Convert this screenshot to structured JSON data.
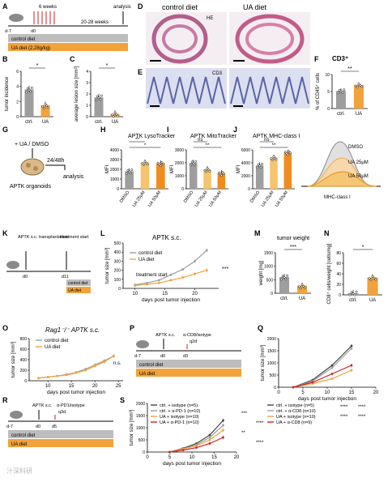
{
  "colors": {
    "ctrl": "#9e9e9e",
    "ua": "#f2a23a",
    "dark": "#444444",
    "red": "#cc2222",
    "light": "#f6c46e",
    "orange": "#f08c1e"
  },
  "panelA": {
    "label": "A",
    "time1": "6 weeks",
    "time2": "20-28 weeks",
    "analysis": "analysis",
    "d7": "d-7",
    "d0": "d0",
    "bar1": "control diet",
    "bar2": "UA diet (2,28g/kg)"
  },
  "panelB": {
    "label": "B",
    "ylabel": "tumor incidence",
    "sig": "*",
    "ticks": [
      "0",
      "2",
      "4",
      "6"
    ],
    "xticks": [
      "ctrl.",
      "UA"
    ]
  },
  "panelC": {
    "label": "C",
    "ylabel": "average lesion size [mm²]",
    "sig": "*",
    "ticks": [
      "0",
      "1",
      "2",
      "3",
      "4"
    ],
    "xticks": [
      "ctrl.",
      "UA"
    ]
  },
  "panelD": {
    "label": "D",
    "t1": "control diet",
    "t2": "UA diet",
    "he": "HE"
  },
  "panelE": {
    "label": "E",
    "cd3": "CD3"
  },
  "panelF": {
    "label": "F",
    "title": "CD3⁺",
    "ylabel": "% of CD45⁺ cells",
    "sig": "**",
    "ticks": [
      "0",
      "5",
      "10"
    ],
    "xticks": [
      "ctrl.",
      "UA"
    ]
  },
  "panelG": {
    "label": "G",
    "treat": "+ UA / DMSO",
    "time": "24/48h",
    "analysis": "analysis",
    "caption": "APTK organoids"
  },
  "panelH": {
    "label": "H",
    "title": "APTK LysoTracker",
    "ylabel": "MFI",
    "sig1": "**",
    "sig2": "*",
    "ticks": [
      "0",
      "1000",
      "2000",
      "3000",
      "4000"
    ],
    "xticks": [
      "DMSO",
      "UA 25μM",
      "UA 50μM"
    ]
  },
  "panelI": {
    "label": "I",
    "title": "APTK MitoTracker",
    "ylabel": "MFI",
    "sig1": "ns",
    "sig2": "**",
    "ticks": [
      "0",
      "1000",
      "2000",
      "3000"
    ],
    "xticks": [
      "DMSO",
      "UA 25μM",
      "UA 50μM"
    ]
  },
  "panelJ": {
    "label": "J",
    "title": "APTK MHC-class I",
    "ylabel": "MFI",
    "sig1": "ns",
    "sig2": "**",
    "ticks": [
      "0",
      "2000",
      "4000",
      "6000"
    ],
    "xticks": [
      "DMSO",
      "UA 25μM",
      "UA 50μM"
    ],
    "hist": [
      "DMSO",
      "UA 25μM",
      "UA 50μM"
    ],
    "hist_x": "MHC-class I"
  },
  "panelK": {
    "label": "K",
    "s1": "APTK s.c. transplantation",
    "s2": "treatment start",
    "d0": "d0",
    "d11": "d11",
    "bar1": "control diet",
    "bar2": "UA diet"
  },
  "panelL": {
    "label": "L",
    "title": "APTK s.c.",
    "ylabel": "tumor size [mm³]",
    "xlabel": "days post tumor injection",
    "sig": "***",
    "annot": "treatment start",
    "legend": [
      "control diet",
      "UA diet"
    ],
    "yticks": [
      "0",
      "100",
      "200",
      "300",
      "400",
      "500"
    ],
    "xticks": [
      "10",
      "15",
      "20"
    ]
  },
  "panelM": {
    "label": "M",
    "title": "tumor weight",
    "ylabel": "weight [mg]",
    "sig": "***",
    "ticks": [
      "0",
      "500",
      "1000",
      "1500"
    ],
    "xticks": [
      "ctrl.",
      "UA"
    ]
  },
  "panelN": {
    "label": "N",
    "ylabel": "CD8⁺ cells/weight [cells/mg]",
    "sig": "*",
    "ticks": [
      "0",
      "20",
      "40",
      "60",
      "80"
    ],
    "xticks": [
      "ctrl.",
      "UA"
    ]
  },
  "panelO": {
    "label": "O",
    "title": "Rag1⁻/⁻ APTK s.c.",
    "ylabel": "tumor size [mm³]",
    "xlabel": "days post tumor injection",
    "sig": "n.s.",
    "legend": [
      "control diet",
      "UA diet"
    ],
    "yticks": [
      "0",
      "200",
      "400",
      "600",
      "800"
    ],
    "xticks": [
      "10",
      "15",
      "20",
      "25"
    ]
  },
  "panelP": {
    "label": "P",
    "s1": "APTK s.c.",
    "s2": "α-CD8/isotype",
    "q2d": "q2d",
    "d7": "d-7",
    "d0": "d0",
    "d3": "d3",
    "bar1": "control diet",
    "bar2": "UA diet"
  },
  "panelQ": {
    "label": "Q",
    "ylabel": "tumor size [mm³]",
    "xlabel": "days post tumor injection",
    "legend": [
      "ctrl. + isotype (n=5)",
      "ctrl. + α-CD8 (n=10)",
      "UA + isotype (n=10)",
      "UA + α-CD8 (n=9)"
    ],
    "sigs": [
      "****",
      "****",
      "****",
      "****"
    ],
    "yticks": [
      "0",
      "500",
      "1000",
      "1500",
      "2000"
    ],
    "xticks": [
      "0",
      "5",
      "10",
      "15",
      "20"
    ]
  },
  "panelR": {
    "label": "R",
    "s1": "APTK s.c.",
    "s2": "α-PD1/isotype",
    "q3d": "q3d",
    "d7": "d-7",
    "d0": "d0",
    "d5": "d5",
    "bar1": "control diet",
    "bar2": "UA diet"
  },
  "panelS": {
    "label": "S",
    "ylabel": "tumor size [mm³]",
    "xlabel": "days post tumor injection",
    "legend": [
      "ctrl. + isotype (n=5)",
      "ctrl. + α-PD-1 (n=10)",
      "UA + isotype (n=10)",
      "UA + α-PD-1 (n=10)"
    ],
    "sigs": [
      "***",
      "****",
      "**",
      "****"
    ],
    "yticks": [
      "0",
      "500",
      "1000",
      "1500",
      "2000"
    ],
    "xticks": [
      "0",
      "5",
      "10",
      "15",
      "20"
    ]
  },
  "watermark": "汁深科研",
  "chart_data": [
    {
      "panel": "B",
      "type": "bar",
      "categories": [
        "ctrl.",
        "UA"
      ],
      "values": [
        3.6,
        1.5
      ],
      "ylim": [
        0,
        6
      ],
      "ylabel": "tumor incidence"
    },
    {
      "panel": "C",
      "type": "bar",
      "categories": [
        "ctrl.",
        "UA"
      ],
      "values": [
        1.7,
        0.25
      ],
      "ylim": [
        0,
        4
      ],
      "ylabel": "average lesion size [mm²]"
    },
    {
      "panel": "F",
      "type": "bar",
      "categories": [
        "ctrl.",
        "UA"
      ],
      "values": [
        6.2,
        8.3
      ],
      "ylim": [
        0,
        12
      ],
      "title": "CD3⁺",
      "ylabel": "% of CD45⁺ cells"
    },
    {
      "panel": "H",
      "type": "bar",
      "categories": [
        "DMSO",
        "UA 25μM",
        "UA 50μM"
      ],
      "values": [
        1800,
        2700,
        2600
      ],
      "ylim": [
        0,
        4000
      ],
      "title": "APTK LysoTracker",
      "ylabel": "MFI"
    },
    {
      "panel": "I",
      "type": "bar",
      "categories": [
        "DMSO",
        "UA 25μM",
        "UA 50μM"
      ],
      "values": [
        2000,
        1500,
        1200
      ],
      "ylim": [
        0,
        3000
      ],
      "title": "APTK MitoTracker",
      "ylabel": "MFI"
    },
    {
      "panel": "J",
      "type": "bar",
      "categories": [
        "DMSO",
        "UA 25μM",
        "UA 50μM"
      ],
      "values": [
        3600,
        4800,
        5600
      ],
      "ylim": [
        0,
        6000
      ],
      "title": "APTK MHC-class I",
      "ylabel": "MFI"
    },
    {
      "panel": "L",
      "type": "line",
      "x": [
        10,
        12,
        14,
        16,
        18,
        20,
        22
      ],
      "series": [
        {
          "name": "control diet",
          "values": [
            40,
            60,
            90,
            150,
            210,
            300,
            420
          ]
        },
        {
          "name": "UA diet",
          "values": [
            30,
            45,
            60,
            90,
            120,
            160,
            200
          ]
        }
      ],
      "ylim": [
        0,
        500
      ],
      "xlabel": "days post tumor injection",
      "ylabel": "tumor size [mm³]",
      "title": "APTK s.c."
    },
    {
      "panel": "M",
      "type": "bar",
      "categories": [
        "ctrl.",
        "UA"
      ],
      "values": [
        600,
        280
      ],
      "ylim": [
        0,
        1500
      ],
      "title": "tumor weight",
      "ylabel": "weight [mg]"
    },
    {
      "panel": "N",
      "type": "bar",
      "categories": [
        "ctrl.",
        "UA"
      ],
      "values": [
        3,
        33
      ],
      "ylim": [
        0,
        80
      ],
      "ylabel": "CD8⁺ cells/weight [cells/mg]"
    },
    {
      "panel": "O",
      "type": "line",
      "x": [
        8,
        10,
        12,
        14,
        16,
        18,
        20,
        22,
        24
      ],
      "series": [
        {
          "name": "control diet",
          "values": [
            50,
            70,
            90,
            120,
            160,
            220,
            300,
            380,
            470
          ]
        },
        {
          "name": "UA diet",
          "values": [
            50,
            70,
            90,
            110,
            150,
            200,
            280,
            360,
            470
          ]
        }
      ],
      "ylim": [
        0,
        800
      ],
      "xlabel": "days post tumor injection",
      "ylabel": "tumor size [mm³]"
    },
    {
      "panel": "Q",
      "type": "line",
      "x": [
        3,
        7,
        11,
        15
      ],
      "series": [
        {
          "name": "ctrl. + isotype (n=5)",
          "values": [
            0,
            300,
            900,
            1700
          ]
        },
        {
          "name": "ctrl. + α-CD8 (n=10)",
          "values": [
            0,
            250,
            800,
            1600
          ]
        },
        {
          "name": "UA + isotype (n=10)",
          "values": [
            0,
            150,
            350,
            700
          ]
        },
        {
          "name": "UA + α-CD8 (n=9)",
          "values": [
            0,
            200,
            550,
            900
          ]
        }
      ],
      "ylim": [
        0,
        2000
      ],
      "xlim": [
        0,
        20
      ],
      "xlabel": "days post tumor injection",
      "ylabel": "tumor size [mm³]"
    },
    {
      "panel": "S",
      "type": "line",
      "x": [
        5,
        8,
        11,
        14,
        17
      ],
      "series": [
        {
          "name": "ctrl. + isotype (n=5)",
          "values": [
            0,
            150,
            350,
            700,
            1300
          ]
        },
        {
          "name": "ctrl. + α-PD-1 (n=10)",
          "values": [
            0,
            130,
            300,
            600,
            1100
          ]
        },
        {
          "name": "UA + isotype (n=10)",
          "values": [
            0,
            120,
            260,
            500,
            900
          ]
        },
        {
          "name": "UA + α-PD-1 (n=10)",
          "values": [
            0,
            80,
            180,
            350,
            600
          ]
        }
      ],
      "ylim": [
        0,
        2000
      ],
      "xlim": [
        0,
        20
      ],
      "xlabel": "days post tumor injection",
      "ylabel": "tumor size [mm³]"
    }
  ]
}
